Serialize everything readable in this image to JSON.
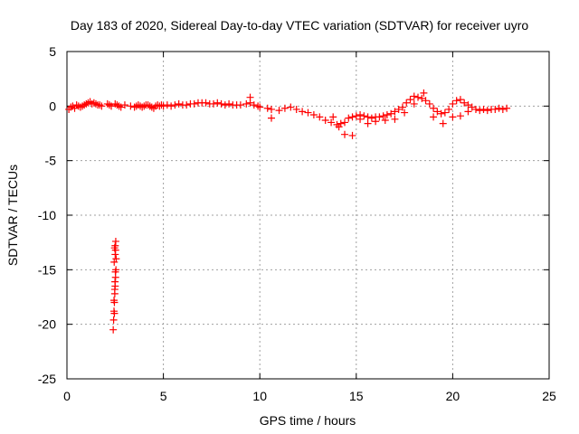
{
  "chart_data": {
    "type": "scatter",
    "title": "Day 183 of 2020, Sidereal Day-to-day VTEC variation (SDTVAR) for receiver uyro",
    "xlabel": "GPS time / hours",
    "ylabel": "SDTVAR / TECUs",
    "xlim": [
      0,
      25
    ],
    "ylim": [
      -25,
      5
    ],
    "xticks": [
      0,
      5,
      10,
      15,
      20,
      25
    ],
    "yticks": [
      -25,
      -20,
      -15,
      -10,
      -5,
      0,
      5
    ],
    "xtick_labels": [
      "0",
      "5",
      "10",
      "15",
      "20",
      "25"
    ],
    "ytick_labels": [
      "-25",
      "-20",
      "-15",
      "-10",
      "-5",
      "0",
      "5"
    ],
    "grid": true,
    "marker": "+",
    "color": "#ff0000",
    "series": [
      {
        "name": "SDTVAR",
        "x": [
          0.1,
          0.2,
          0.3,
          0.4,
          0.5,
          0.6,
          0.7,
          0.8,
          0.9,
          1.0,
          1.1,
          1.2,
          1.3,
          1.4,
          1.5,
          1.6,
          1.7,
          1.8,
          2.1,
          2.2,
          2.3,
          2.5,
          2.6,
          2.7,
          2.8,
          3.0,
          3.3,
          3.5,
          3.6,
          3.7,
          3.8,
          3.9,
          4.0,
          4.1,
          4.2,
          4.3,
          4.4,
          4.5,
          4.6,
          4.7,
          4.8,
          4.9,
          5.0,
          5.2,
          5.4,
          5.6,
          5.8,
          6.0,
          6.2,
          6.4,
          6.6,
          6.8,
          7.0,
          7.2,
          7.4,
          7.6,
          7.8,
          8.0,
          8.2,
          8.4,
          8.6,
          8.8,
          9.0,
          9.3,
          9.5,
          9.7,
          9.9,
          10.0,
          10.4,
          10.6,
          11.0,
          11.3,
          11.6,
          11.9,
          12.2,
          12.5,
          12.8,
          13.1,
          13.4,
          13.7,
          14.0,
          14.2,
          14.4,
          14.6,
          14.8,
          15.0,
          15.2,
          15.4,
          15.6,
          15.8,
          16.0,
          16.2,
          16.4,
          16.6,
          16.8,
          17.0,
          17.2,
          17.4,
          17.6,
          17.8,
          18.0,
          18.2,
          18.4,
          18.6,
          18.8,
          19.0,
          19.2,
          19.4,
          19.6,
          19.8,
          20.0,
          20.2,
          20.4,
          20.6,
          20.8,
          21.0,
          21.2,
          21.4,
          21.6,
          21.8,
          22.0,
          22.2,
          22.4,
          22.6,
          22.8,
          14.4,
          14.8,
          13.8,
          14.1,
          15.2,
          15.6,
          16.0,
          16.5,
          17.0,
          17.5,
          18.0,
          18.5,
          19.0,
          19.5,
          20.0,
          20.4,
          20.8,
          9.5,
          10.6,
          2.4,
          2.42,
          2.44,
          2.46,
          2.48,
          2.5,
          2.52,
          2.54,
          2.45,
          2.5,
          2.47,
          2.53,
          2.49,
          2.51,
          2.44,
          2.55,
          2.46,
          2.5,
          2.48,
          2.52
        ],
        "y": [
          -0.3,
          -0.1,
          0.0,
          -0.2,
          0.1,
          0.0,
          -0.1,
          0.0,
          0.1,
          0.2,
          0.3,
          0.4,
          0.2,
          0.3,
          0.2,
          0.1,
          0.1,
          0.0,
          0.2,
          0.1,
          0.0,
          0.2,
          0.1,
          0.0,
          -0.1,
          0.1,
          0.0,
          -0.1,
          0.0,
          0.1,
          0.0,
          -0.1,
          0.0,
          0.1,
          0.1,
          0.0,
          -0.1,
          -0.2,
          0.0,
          0.1,
          0.0,
          0.1,
          0.0,
          0.1,
          0.0,
          0.1,
          0.2,
          0.1,
          0.1,
          0.2,
          0.2,
          0.3,
          0.3,
          0.3,
          0.2,
          0.2,
          0.3,
          0.2,
          0.1,
          0.2,
          0.1,
          0.1,
          0.1,
          0.2,
          0.3,
          0.1,
          0.0,
          -0.1,
          -0.2,
          -0.3,
          -0.4,
          -0.2,
          -0.1,
          -0.3,
          -0.5,
          -0.6,
          -0.8,
          -1.0,
          -1.3,
          -1.5,
          -1.7,
          -1.6,
          -1.5,
          -1.1,
          -1.0,
          -0.9,
          -0.8,
          -0.9,
          -1.0,
          -1.1,
          -1.0,
          -1.0,
          -0.9,
          -0.8,
          -0.7,
          -0.5,
          -0.3,
          -0.1,
          0.3,
          0.6,
          0.9,
          0.8,
          0.7,
          0.5,
          0.2,
          -0.2,
          -0.5,
          -0.7,
          -0.6,
          -0.3,
          0.2,
          0.5,
          0.6,
          0.3,
          0.1,
          -0.1,
          -0.3,
          -0.4,
          -0.3,
          -0.4,
          -0.3,
          -0.3,
          -0.2,
          -0.3,
          -0.2,
          -2.6,
          -2.7,
          -1.0,
          -1.9,
          -1.2,
          -1.6,
          -1.4,
          -1.3,
          -1.2,
          -0.6,
          0.2,
          1.2,
          -1.0,
          -1.6,
          -1.0,
          -0.9,
          -0.5,
          0.8,
          -1.1,
          -20.5,
          -19.6,
          -18.8,
          -18.0,
          -17.2,
          -16.5,
          -15.7,
          -15.0,
          -14.3,
          -13.6,
          -13.0,
          -12.4,
          -16.1,
          -15.2,
          -17.8,
          -14.0,
          -19.0,
          -12.8,
          -16.8,
          -13.2
        ],
        "values_note": "approximate"
      }
    ]
  }
}
